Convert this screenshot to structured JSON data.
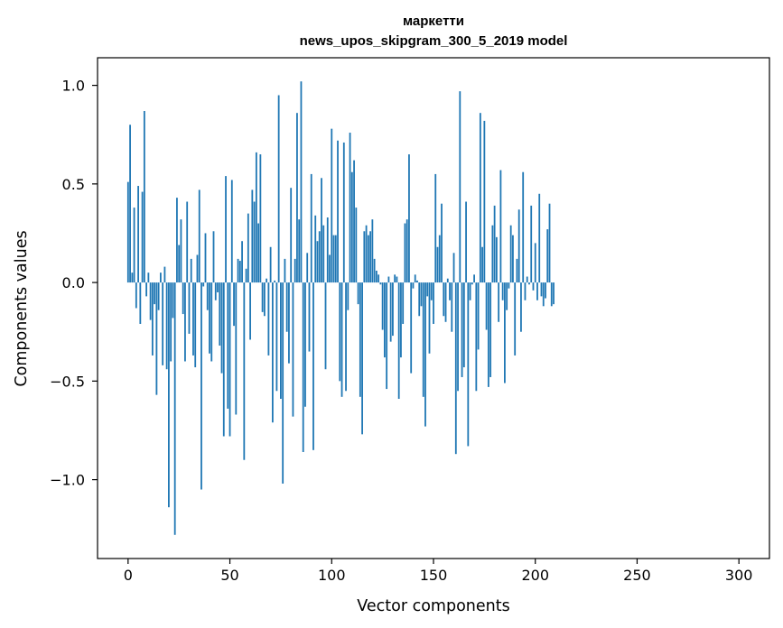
{
  "chart_data": {
    "type": "bar",
    "title": "маркетти",
    "subtitle": "news_upos_skipgram_300_5_2019 model",
    "xlabel": "Vector components",
    "ylabel": "Components values",
    "xlim": [
      -15,
      315
    ],
    "ylim": [
      -1.4,
      1.14
    ],
    "xticks": [
      0,
      50,
      100,
      150,
      200,
      250,
      300
    ],
    "xtick_labels": [
      "0",
      "50",
      "100",
      "150",
      "200",
      "250",
      "300"
    ],
    "yticks": [
      -1.0,
      -0.5,
      0.0,
      0.5,
      1.0
    ],
    "ytick_labels": [
      "−1.0",
      "−0.5",
      "0.0",
      "0.5",
      "1.0"
    ],
    "bar_color": "#1f77b4",
    "grid": false,
    "values": [
      0.51,
      0.8,
      0.05,
      0.38,
      -0.13,
      0.49,
      -0.21,
      0.46,
      0.87,
      -0.07,
      0.05,
      -0.19,
      -0.37,
      -0.11,
      -0.57,
      -0.14,
      0.05,
      -0.42,
      0.08,
      -0.44,
      -1.14,
      -0.4,
      -0.18,
      -1.28,
      0.43,
      0.19,
      0.32,
      -0.16,
      -0.4,
      0.41,
      -0.26,
      0.12,
      -0.37,
      -0.43,
      0.14,
      0.47,
      -1.05,
      -0.02,
      0.25,
      -0.14,
      -0.36,
      -0.4,
      0.26,
      -0.09,
      -0.05,
      -0.32,
      -0.46,
      -0.78,
      0.54,
      -0.64,
      -0.78,
      0.52,
      -0.22,
      -0.67,
      0.12,
      0.11,
      0.21,
      -0.9,
      0.07,
      0.35,
      -0.29,
      0.47,
      0.41,
      0.66,
      0.3,
      0.65,
      -0.15,
      -0.17,
      0.02,
      -0.37,
      0.18,
      -0.71,
      0.01,
      -0.55,
      0.95,
      -0.59,
      -1.02,
      0.12,
      -0.25,
      -0.41,
      0.48,
      -0.68,
      0.12,
      0.86,
      0.32,
      1.02,
      -0.86,
      -0.63,
      0.15,
      -0.35,
      0.55,
      -0.85,
      0.34,
      0.21,
      0.26,
      0.53,
      0.29,
      -0.44,
      0.33,
      0.14,
      0.78,
      0.24,
      0.24,
      0.72,
      -0.5,
      -0.58,
      0.71,
      -0.55,
      -0.14,
      0.76,
      0.56,
      0.62,
      0.38,
      -0.11,
      -0.58,
      -0.77,
      0.26,
      0.29,
      0.24,
      0.26,
      0.32,
      0.12,
      0.06,
      0.04,
      -0.01,
      -0.24,
      -0.38,
      -0.54,
      0.03,
      -0.3,
      -0.27,
      0.04,
      0.03,
      -0.59,
      -0.38,
      -0.21,
      0.3,
      0.32,
      0.65,
      -0.46,
      -0.03,
      0.04,
      0.01,
      -0.17,
      -0.12,
      -0.58,
      -0.73,
      -0.07,
      -0.36,
      -0.09,
      -0.21,
      0.55,
      0.18,
      0.24,
      0.4,
      -0.17,
      -0.2,
      0.02,
      -0.09,
      -0.25,
      0.15,
      -0.87,
      -0.55,
      0.97,
      -0.48,
      -0.43,
      0.41,
      -0.83,
      -0.09,
      -0.01,
      0.04,
      -0.55,
      -0.34,
      0.86,
      0.18,
      0.82,
      -0.24,
      -0.53,
      -0.48,
      0.29,
      0.39,
      0.23,
      -0.2,
      0.57,
      -0.09,
      -0.51,
      -0.14,
      -0.03,
      0.29,
      0.24,
      -0.37,
      0.12,
      0.37,
      -0.25,
      0.56,
      -0.09,
      0.03,
      -0.01,
      0.39,
      -0.04,
      0.2,
      -0.09,
      0.45,
      -0.07,
      -0.12,
      -0.08,
      0.27,
      0.4,
      -0.12,
      -0.11
    ],
    "values_note_removed": true
  }
}
